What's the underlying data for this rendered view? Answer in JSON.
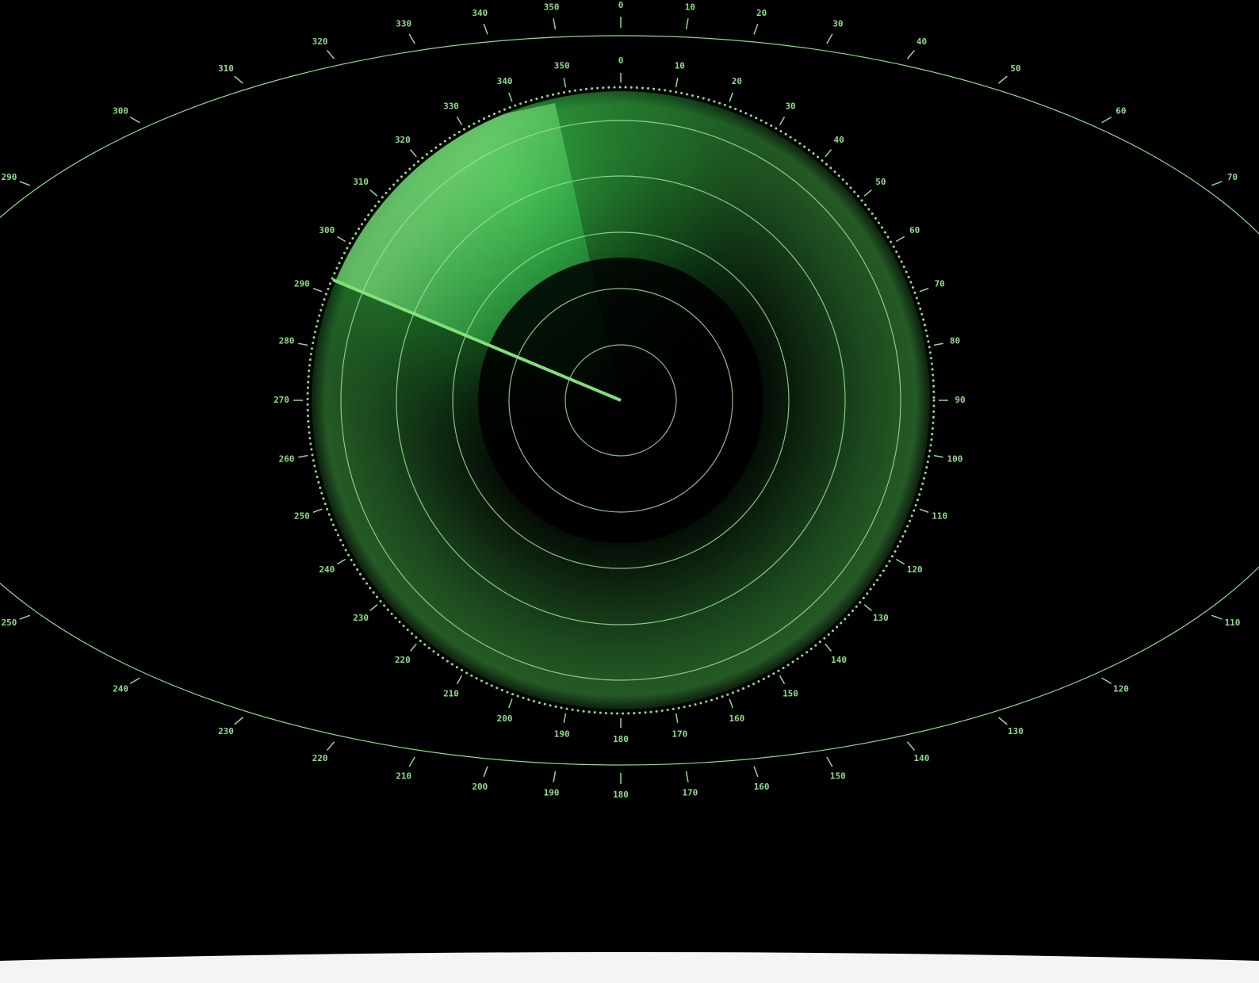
{
  "inner_dial": {
    "labels": [
      0,
      10,
      20,
      30,
      40,
      50,
      60,
      70,
      80,
      90,
      100,
      110,
      120,
      130,
      140,
      150,
      160,
      170,
      180,
      190,
      200,
      210,
      220,
      230,
      240,
      250,
      260,
      270,
      280,
      290,
      300,
      310,
      320,
      330,
      340,
      350
    ]
  },
  "outer_dial": {
    "labels": [
      0,
      10,
      20,
      30,
      40,
      50,
      60,
      70,
      110,
      120,
      130,
      140,
      150,
      160,
      170,
      180,
      190,
      200,
      210,
      220,
      230,
      240,
      250,
      290,
      300,
      310,
      320,
      330,
      340,
      350
    ]
  }
}
